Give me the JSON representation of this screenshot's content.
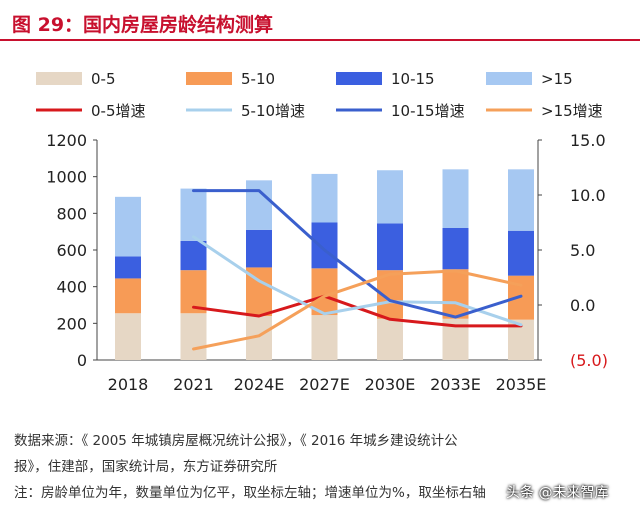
{
  "header": {
    "title": "图 29：国内房屋房龄结构测算"
  },
  "chart_data": {
    "type": "bar",
    "stacked": true,
    "categories": [
      "2018",
      "2021",
      "2024E",
      "2027E",
      "2030E",
      "2033E",
      "2035E"
    ],
    "series": [
      {
        "name": "0-5",
        "color": "#e6d7c5",
        "values": [
          255,
          255,
          240,
          245,
          225,
          225,
          220
        ]
      },
      {
        "name": "5-10",
        "color": "#f79b56",
        "values": [
          190,
          235,
          265,
          255,
          265,
          270,
          240
        ]
      },
      {
        "name": "10-15",
        "color": "#3b5fe0",
        "values": [
          120,
          160,
          205,
          250,
          255,
          225,
          245
        ]
      },
      {
        "name": ">15",
        "color": "#a6c8f2",
        "values": [
          325,
          285,
          270,
          265,
          290,
          320,
          335
        ]
      }
    ],
    "line_series": [
      {
        "name": "0-5增速",
        "color": "#d7191c",
        "values": [
          null,
          -0.2,
          -1.0,
          0.8,
          -1.3,
          -1.9,
          -1.9
        ]
      },
      {
        "name": "5-10增速",
        "color": "#a8d0ec",
        "values": [
          null,
          6.2,
          2.2,
          -0.8,
          0.3,
          0.2,
          -1.8
        ]
      },
      {
        "name": "10-15增速",
        "color": "#3a5fcd",
        "values": [
          null,
          10.4,
          10.4,
          5.0,
          0.4,
          -1.1,
          0.8
        ]
      },
      {
        "name": ">15增速",
        "color": "#f5a05a",
        "values": [
          null,
          -4.0,
          -2.8,
          0.8,
          2.8,
          3.1,
          1.8
        ]
      }
    ],
    "y_left": {
      "min": 0,
      "max": 1200,
      "ticks": [
        "0",
        "200",
        "400",
        "600",
        "800",
        "1000",
        "1200"
      ]
    },
    "y_right": {
      "min": -5,
      "max": 15,
      "ticks": [
        "(5.0)",
        "0.0",
        "5.0",
        "10.0",
        "15.0"
      ],
      "negative_color": "#d7191c"
    },
    "grid": false
  },
  "footer": {
    "source_line1": "数据来源：《 2005 年城镇房屋概况统计公报》，《 2016 年城乡建设统计公",
    "source_line2": "报》，住建部，国家统计局，东方证券研究所",
    "note": "注：房龄单位为年，数量单位为亿平，取坐标左轴；增速单位为%，取坐标右轴"
  },
  "watermark": "头条 @未来智库"
}
